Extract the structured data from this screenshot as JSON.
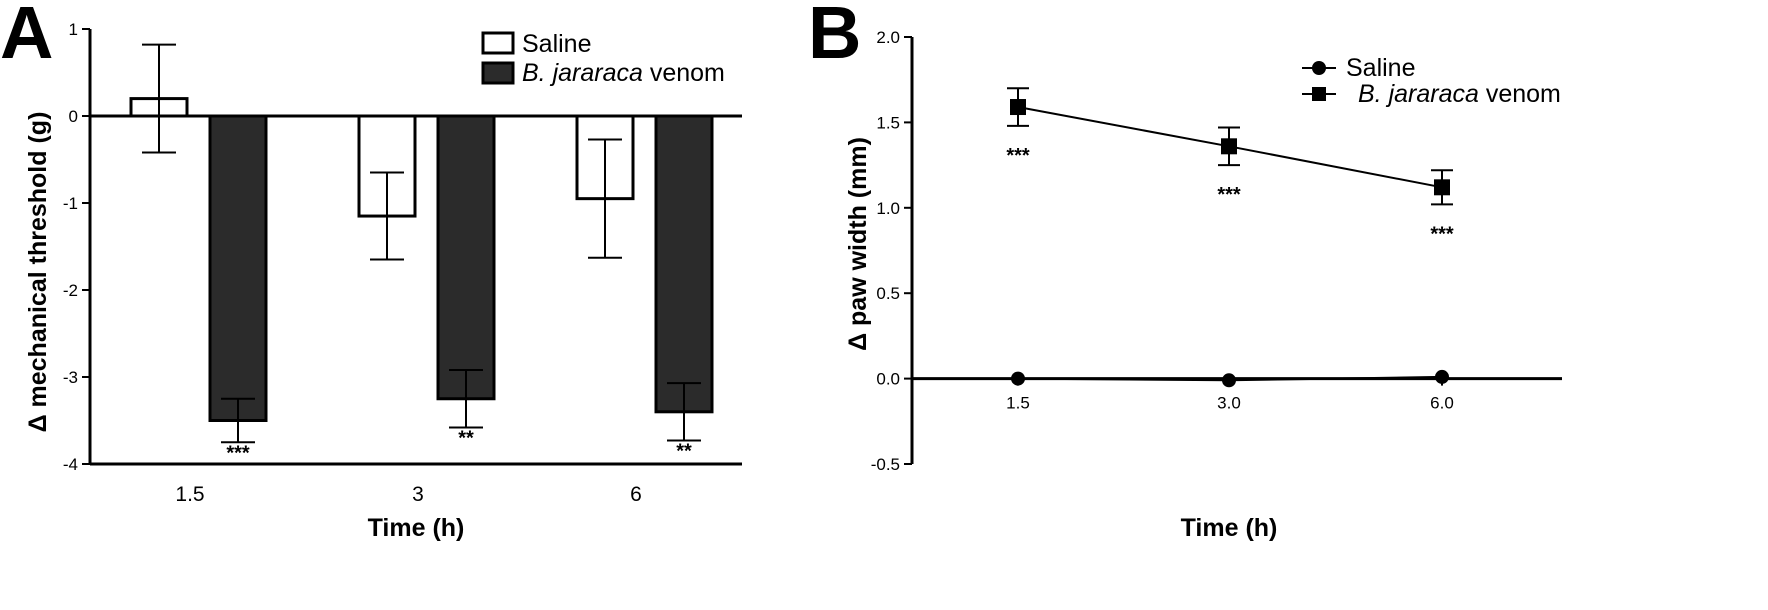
{
  "chart_data": [
    {
      "panel": "A",
      "type": "bar",
      "title": "",
      "xlabel": "Time (h)",
      "ylabel": "Δ mechanical threshold (g)",
      "categories": [
        "1.5",
        "3",
        "6"
      ],
      "ylim": [
        -4,
        1
      ],
      "yticks": [
        1,
        0,
        -1,
        -2,
        -3,
        -4
      ],
      "ytick_labels": [
        "1",
        "0",
        "-1",
        "-2",
        "-3",
        "-4"
      ],
      "grid": false,
      "legend_position": "top-right",
      "series": [
        {
          "name": "Saline",
          "style": "open",
          "values": [
            0.2,
            -1.15,
            -0.95
          ],
          "errors": [
            0.62,
            0.5,
            0.68
          ],
          "significance": [
            "",
            "",
            ""
          ]
        },
        {
          "name_italic": "B. jararaca",
          "name_rest": " venom",
          "style": "filled",
          "color": "#2b2b2b",
          "values": [
            -3.5,
            -3.25,
            -3.4
          ],
          "errors": [
            0.25,
            0.33,
            0.33
          ],
          "significance": [
            "***",
            "**",
            "**"
          ]
        }
      ]
    },
    {
      "panel": "B",
      "type": "line",
      "title": "",
      "xlabel": "Time (h)",
      "ylabel": "Δ paw width (mm)",
      "x": [
        "1.5",
        "3.0",
        "6.0"
      ],
      "ylim": [
        -0.5,
        2.0
      ],
      "yticks": [
        2.0,
        1.5,
        1.0,
        0.5,
        0.0,
        -0.5
      ],
      "ytick_labels": [
        "2.0",
        "1.5",
        "1.0",
        "0.5",
        "0.0",
        "-0.5"
      ],
      "grid": false,
      "legend_position": "top-right",
      "series": [
        {
          "name": "Saline",
          "marker": "circle",
          "values": [
            0.0,
            -0.01,
            0.01
          ],
          "errors": [
            0,
            0,
            0
          ],
          "significance": [
            "",
            "",
            ""
          ]
        },
        {
          "name_italic": "B. jararaca",
          "name_rest": " venom",
          "marker": "square",
          "values": [
            1.59,
            1.36,
            1.12
          ],
          "errors": [
            0.11,
            0.11,
            0.1
          ],
          "significance": [
            "***",
            "***",
            "***"
          ]
        }
      ]
    }
  ]
}
